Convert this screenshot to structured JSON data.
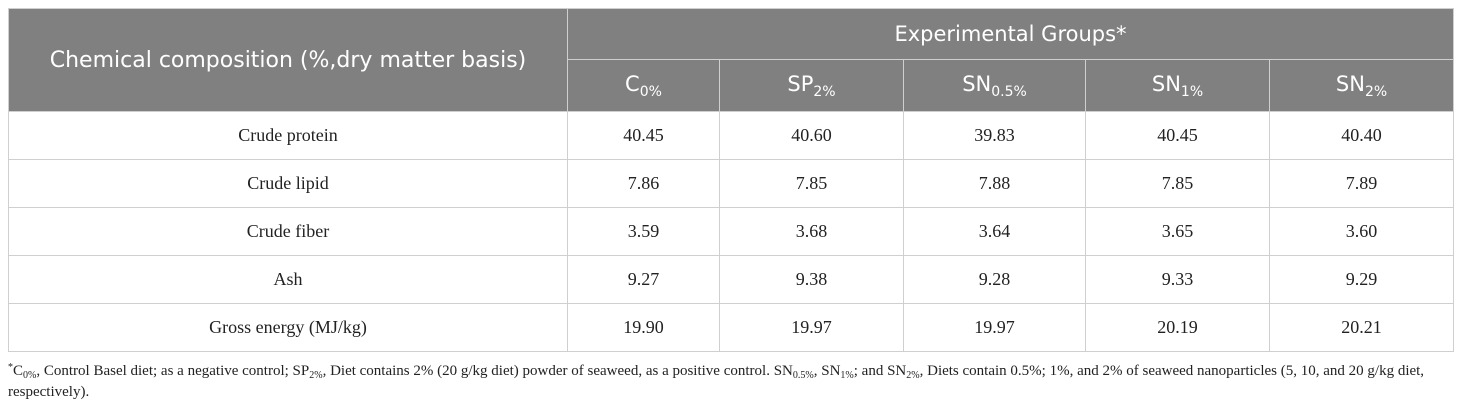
{
  "table": {
    "row_header_title": "Chemical composition (%,dry matter basis)",
    "group_title": "Experimental Groups*",
    "columns": [
      {
        "base": "C",
        "sub": "0%"
      },
      {
        "base": "SP",
        "sub": "2%"
      },
      {
        "base": "SN",
        "sub": "0.5%"
      },
      {
        "base": "SN",
        "sub": "1%"
      },
      {
        "base": "SN",
        "sub": "2%"
      }
    ],
    "rows": [
      {
        "label": "Crude protein",
        "values": [
          "40.45",
          "40.60",
          "39.83",
          "40.45",
          "40.40"
        ]
      },
      {
        "label": "Crude lipid",
        "values": [
          "7.86",
          "7.85",
          "7.88",
          "7.85",
          "7.89"
        ]
      },
      {
        "label": "Crude fiber",
        "values": [
          "3.59",
          "3.68",
          "3.64",
          "3.65",
          "3.60"
        ]
      },
      {
        "label": "Ash",
        "values": [
          "9.27",
          "9.38",
          "9.28",
          "9.33",
          "9.29"
        ]
      },
      {
        "label": "Gross energy (MJ/kg)",
        "values": [
          "19.90",
          "19.97",
          "19.97",
          "20.19",
          "20.21"
        ]
      }
    ]
  },
  "footnote": {
    "star": "*",
    "p1": "C",
    "p1_sub": "0%",
    "p2": ", Control Basel diet; as a negative control; SP",
    "p2_sub": "2%",
    "p3": ", Diet contains 2% (20 g/kg diet) powder of seaweed, as a positive control. SN",
    "p3_sub": "0.5%",
    "p4": ", SN",
    "p4_sub": "1%",
    "p5": "; and SN",
    "p5_sub": "2%",
    "p6": ", Diets contain 0.5%; 1%, and 2% of seaweed nanoparticles (5, 10, and 20 g/kg diet, respectively)."
  }
}
